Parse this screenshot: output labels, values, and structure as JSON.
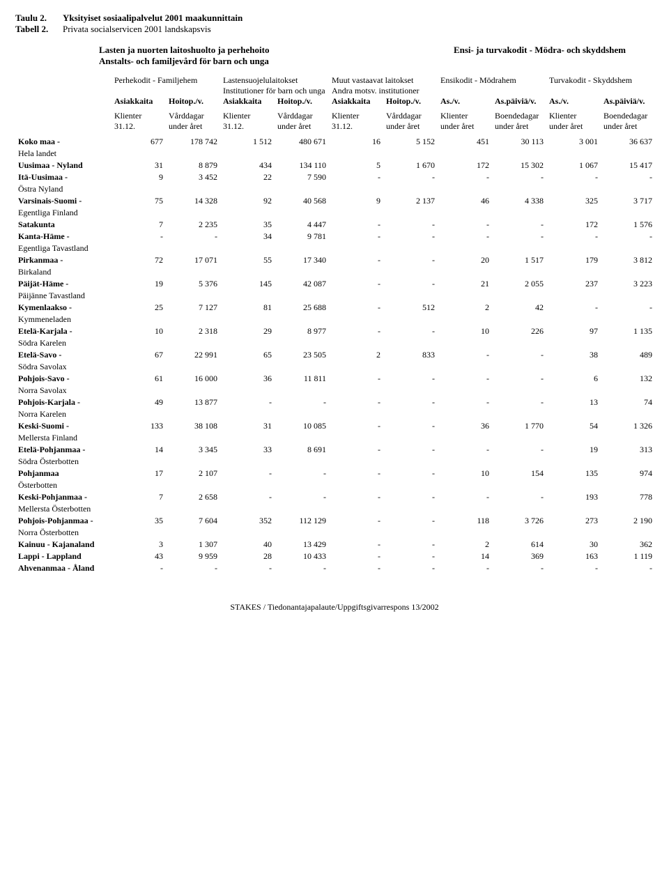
{
  "title": {
    "row1_label": "Taulu 2.",
    "row1_text": "Yksityiset sosiaalipalvelut 2001 maakunnittain",
    "row2_label": "Tabell 2.",
    "row2_text": "Privata socialservicen 2001 landskapsvis"
  },
  "heading": {
    "left1": "Lasten ja nuorten laitoshuolto ja perhehoito",
    "left2": "Anstalts- och familjevård för barn och unga",
    "right": "Ensi- ja turvakodit - Mödra- och skyddshem"
  },
  "groups": {
    "g1": {
      "line1": "Perhekodit - Familjehem",
      "line2": "",
      "h1": "Asiakkaita",
      "h2": "Hoitop./v.",
      "s1a": "Klienter",
      "s1b": "31.12.",
      "s2a": "Vårddagar",
      "s2b": "under året"
    },
    "g2": {
      "line1": "Lastensuojelulaitokset",
      "line2": "Institutioner för barn och unga",
      "h1": "Asiakkaita",
      "h2": "Hoitop./v.",
      "s1a": "Klienter",
      "s1b": "31.12.",
      "s2a": "Vårddagar",
      "s2b": "under året"
    },
    "g3": {
      "line1": "Muut vastaavat laitokset",
      "line2": "Andra motsv. institutioner",
      "h1": "Asiakkaita",
      "h2": "Hoitop./v.",
      "s1a": "Klienter",
      "s1b": "31.12.",
      "s2a": "Vårddagar",
      "s2b": "under året"
    },
    "g4": {
      "line1": "Ensikodit - Mödrahem",
      "line2": "",
      "h1": "As./v.",
      "h2": "As.päiviä/v.",
      "s1a": "Klienter",
      "s1b": "under året",
      "s2a": "Boendedagar",
      "s2b": "under året"
    },
    "g5": {
      "line1": "Turvakodit - Skyddshem",
      "line2": "",
      "h1": "As./v.",
      "h2": "As.päiviä/v.",
      "s1a": "Klienter",
      "s1b": "under året",
      "s2a": "Boendedagar",
      "s2b": "under året"
    }
  },
  "rows": [
    {
      "name": "Koko maa -",
      "sub": "Hela landet",
      "v": [
        "677",
        "178 742",
        "1 512",
        "480 671",
        "16",
        "5 152",
        "451",
        "30 113",
        "3 001",
        "36 637"
      ]
    },
    {
      "name": "Uusimaa - Nyland",
      "sub": "",
      "v": [
        "31",
        "8 879",
        "434",
        "134 110",
        "5",
        "1 670",
        "172",
        "15 302",
        "1 067",
        "15 417"
      ]
    },
    {
      "name": "Itä-Uusimaa -",
      "sub": "Östra Nyland",
      "v": [
        "9",
        "3 452",
        "22",
        "7 590",
        "-",
        "-",
        "-",
        "-",
        "-",
        "-"
      ]
    },
    {
      "name": "Varsinais-Suomi -",
      "sub": "Egentliga Finland",
      "v": [
        "75",
        "14 328",
        "92",
        "40 568",
        "9",
        "2 137",
        "46",
        "4 338",
        "325",
        "3 717"
      ]
    },
    {
      "name": "Satakunta",
      "sub": "",
      "v": [
        "7",
        "2 235",
        "35",
        "4 447",
        "-",
        "-",
        "-",
        "-",
        "172",
        "1 576"
      ]
    },
    {
      "name": "Kanta-Häme -",
      "sub": "Egentliga Tavastland",
      "v": [
        "-",
        "-",
        "34",
        "9 781",
        "-",
        "-",
        "-",
        "-",
        "-",
        "-"
      ]
    },
    {
      "name": "Pirkanmaa -",
      "sub": "Birkaland",
      "v": [
        "72",
        "17 071",
        "55",
        "17 340",
        "-",
        "-",
        "20",
        "1 517",
        "179",
        "3 812"
      ]
    },
    {
      "name": "Päijät-Häme -",
      "sub": "Päijänne Tavastland",
      "v": [
        "19",
        "5 376",
        "145",
        "42 087",
        "-",
        "-",
        "21",
        "2 055",
        "237",
        "3 223"
      ]
    },
    {
      "name": "Kymenlaakso -",
      "sub": "Kymmeneladen",
      "v": [
        "25",
        "7 127",
        "81",
        "25 688",
        "-",
        "512",
        "2",
        "42",
        "-",
        "-"
      ]
    },
    {
      "name": "Etelä-Karjala -",
      "sub": "Södra Karelen",
      "v": [
        "10",
        "2 318",
        "29",
        "8 977",
        "-",
        "-",
        "10",
        "226",
        "97",
        "1 135"
      ]
    },
    {
      "name": "Etelä-Savo -",
      "sub": "Södra Savolax",
      "v": [
        "67",
        "22 991",
        "65",
        "23 505",
        "2",
        "833",
        "-",
        "-",
        "38",
        "489"
      ]
    },
    {
      "name": "Pohjois-Savo -",
      "sub": "Norra Savolax",
      "v": [
        "61",
        "16 000",
        "36",
        "11 811",
        "-",
        "-",
        "-",
        "-",
        "6",
        "132"
      ]
    },
    {
      "name": "Pohjois-Karjala -",
      "sub": "Norra Karelen",
      "v": [
        "49",
        "13 877",
        "-",
        "-",
        "-",
        "-",
        "-",
        "-",
        "13",
        "74"
      ]
    },
    {
      "name": "Keski-Suomi -",
      "sub": "Mellersta Finland",
      "v": [
        "133",
        "38 108",
        "31",
        "10 085",
        "-",
        "-",
        "36",
        "1 770",
        "54",
        "1 326"
      ]
    },
    {
      "name": "Etelä-Pohjanmaa -",
      "sub": "Södra Österbotten",
      "v": [
        "14",
        "3 345",
        "33",
        "8 691",
        "-",
        "-",
        "-",
        "-",
        "19",
        "313"
      ]
    },
    {
      "name": "Pohjanmaa",
      "sub": "Österbotten",
      "v": [
        "17",
        "2 107",
        "-",
        "-",
        "-",
        "-",
        "10",
        "154",
        "135",
        "974"
      ]
    },
    {
      "name": "Keski-Pohjanmaa -",
      "sub": "Mellersta Österbotten",
      "v": [
        "7",
        "2 658",
        "-",
        "-",
        "-",
        "-",
        "-",
        "-",
        "193",
        "778"
      ]
    },
    {
      "name": "Pohjois-Pohjanmaa -",
      "sub": "Norra Österbotten",
      "v": [
        "35",
        "7 604",
        "352",
        "112 129",
        "-",
        "-",
        "118",
        "3 726",
        "273",
        "2 190"
      ]
    },
    {
      "name": "Kainuu - Kajanaland",
      "sub": "",
      "v": [
        "3",
        "1 307",
        "40",
        "13 429",
        "-",
        "-",
        "2",
        "614",
        "30",
        "362"
      ]
    },
    {
      "name": "Lappi - Lappland",
      "sub": "",
      "v": [
        "43",
        "9 959",
        "28",
        "10 433",
        "-",
        "-",
        "14",
        "369",
        "163",
        "1 119"
      ]
    },
    {
      "name": "Ahvenanmaa - Åland",
      "sub": "",
      "v": [
        "-",
        "-",
        "-",
        "-",
        "-",
        "-",
        "-",
        "-",
        "-",
        "-"
      ]
    }
  ],
  "footer": "STAKES / Tiedonantajapalaute/Uppgiftsgivarrespons  13/2002"
}
